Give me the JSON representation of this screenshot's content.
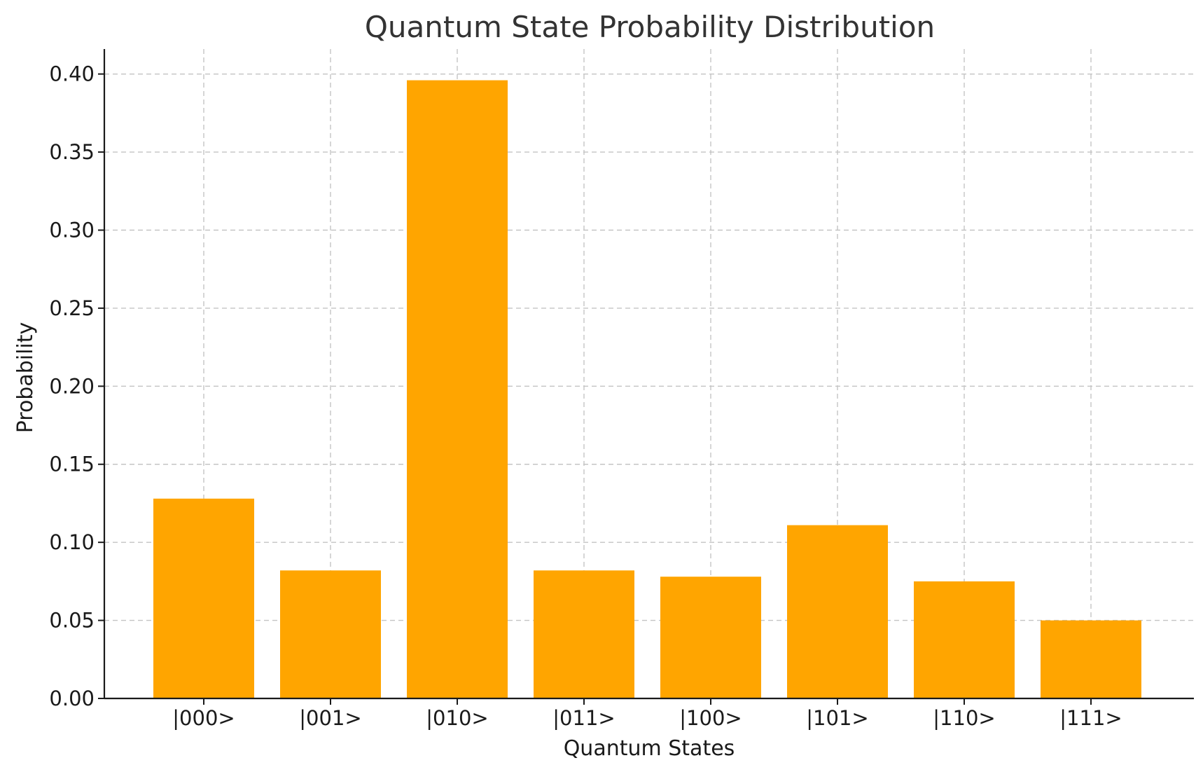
{
  "chart_data": {
    "type": "bar",
    "title": "Quantum State Probability Distribution",
    "xlabel": "Quantum States",
    "ylabel": "Probability",
    "categories": [
      "|000>",
      "|001>",
      "|010>",
      "|011>",
      "|100>",
      "|101>",
      "|110>",
      "|111>"
    ],
    "values": [
      0.128,
      0.082,
      0.396,
      0.082,
      0.078,
      0.111,
      0.075,
      0.05
    ],
    "ylim": [
      0,
      0.416
    ],
    "yticks": [
      0.0,
      0.05,
      0.1,
      0.15,
      0.2,
      0.25,
      0.3,
      0.35,
      0.4
    ],
    "ytick_labels": [
      "0.00",
      "0.05",
      "0.10",
      "0.15",
      "0.20",
      "0.25",
      "0.30",
      "0.35",
      "0.40"
    ],
    "grid": true,
    "bar_color": "#ffa500"
  }
}
